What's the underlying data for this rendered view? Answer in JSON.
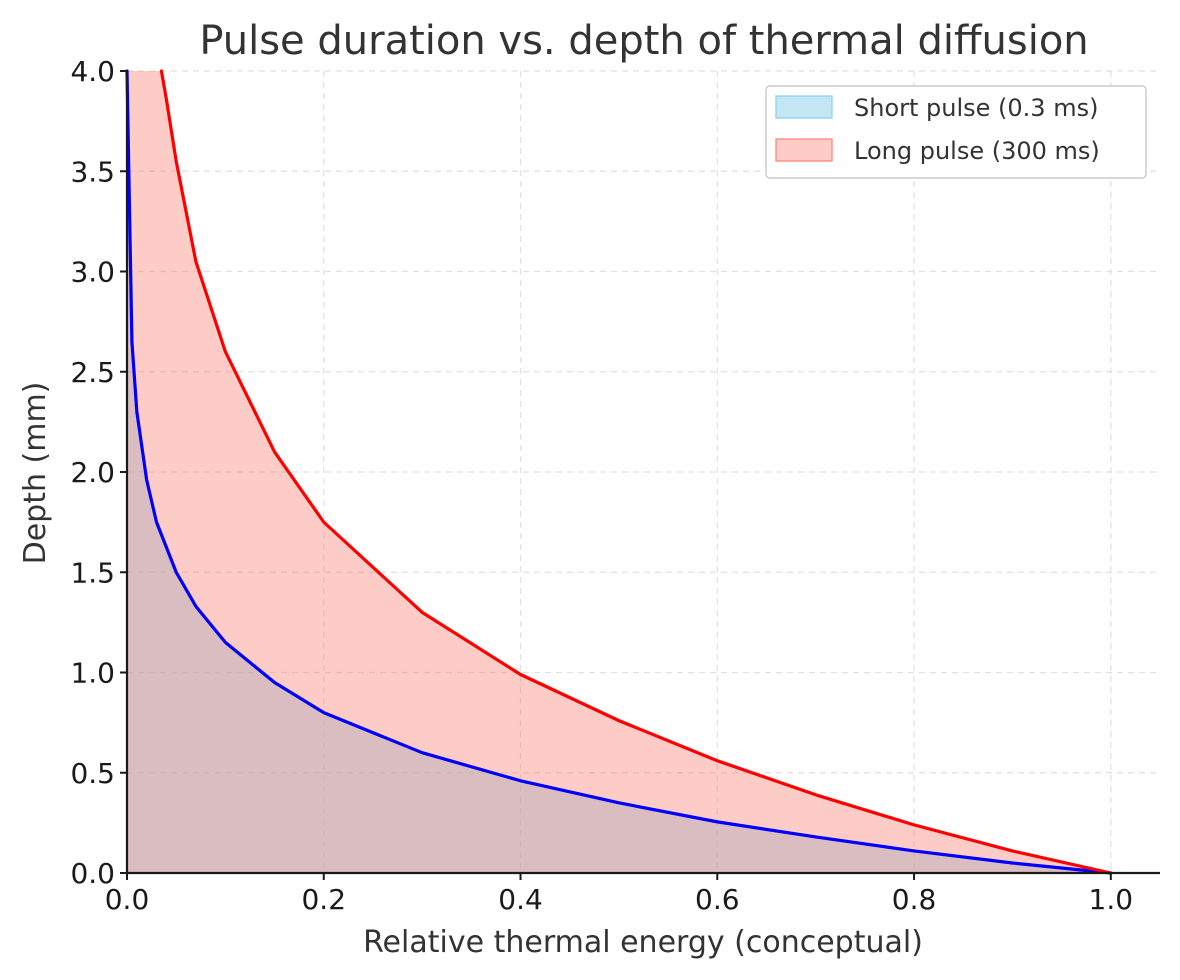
{
  "chart_data": {
    "type": "area",
    "title": "Pulse duration vs. depth of thermal diffusion",
    "xlabel": "Relative thermal energy (conceptual)",
    "ylabel": "Depth (mm)",
    "xlim": [
      0.0,
      1.05
    ],
    "ylim": [
      0.0,
      4.0
    ],
    "xticks": [
      0.0,
      0.2,
      0.4,
      0.6,
      0.8,
      1.0
    ],
    "xtick_labels": [
      "0.0",
      "0.2",
      "0.4",
      "0.6",
      "0.8",
      "1.0"
    ],
    "yticks": [
      0.0,
      0.5,
      1.0,
      1.5,
      2.0,
      2.5,
      3.0,
      3.5,
      4.0
    ],
    "ytick_labels": [
      "0.0",
      "0.5",
      "1.0",
      "1.5",
      "2.0",
      "2.5",
      "3.0",
      "3.5",
      "4.0"
    ],
    "grid": true,
    "legend_position": "top-right",
    "series": [
      {
        "name": "Short pulse (0.3 ms)",
        "line_color": "#0000ff",
        "fill_color": "#87ceeb",
        "x": [
          0.0,
          0.005,
          0.01,
          0.02,
          0.03,
          0.05,
          0.07,
          0.1,
          0.15,
          0.2,
          0.3,
          0.4,
          0.5,
          0.6,
          0.7,
          0.8,
          0.9,
          1.0
        ],
        "y": [
          4.0,
          2.65,
          2.3,
          1.96,
          1.75,
          1.5,
          1.33,
          1.15,
          0.95,
          0.8,
          0.6,
          0.46,
          0.35,
          0.255,
          0.18,
          0.11,
          0.05,
          0.0
        ]
      },
      {
        "name": "Long pulse (300 ms)",
        "line_color": "#ff0000",
        "fill_color": "#fa8072",
        "x": [
          0.035,
          0.04,
          0.05,
          0.07,
          0.1,
          0.15,
          0.2,
          0.3,
          0.4,
          0.5,
          0.6,
          0.7,
          0.8,
          0.9,
          1.0
        ],
        "y": [
          4.0,
          3.86,
          3.55,
          3.05,
          2.6,
          2.1,
          1.75,
          1.3,
          0.99,
          0.76,
          0.56,
          0.39,
          0.24,
          0.11,
          0.0
        ]
      }
    ]
  }
}
